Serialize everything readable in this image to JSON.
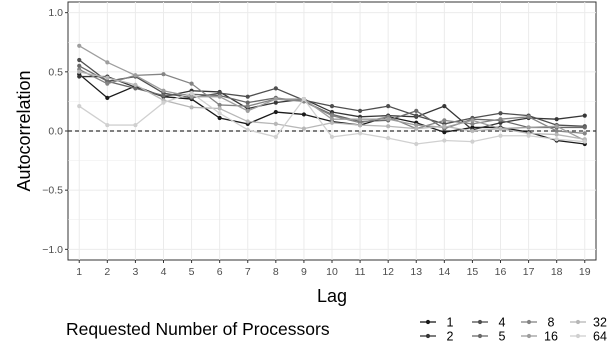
{
  "chart_data": {
    "type": "line",
    "xlabel": "Lag",
    "ylabel": "Autocorrelation",
    "x": [
      1,
      2,
      3,
      4,
      5,
      6,
      7,
      8,
      9,
      10,
      11,
      12,
      13,
      14,
      15,
      16,
      17,
      18,
      19
    ],
    "xlim": [
      0.6,
      19.4
    ],
    "ylim": [
      -1.09,
      1.09
    ],
    "y_ticks": [
      -1.0,
      -0.5,
      0.0,
      0.5,
      1.0
    ],
    "y_tick_labels": [
      "−1.0",
      "−0.5",
      "0.0",
      "0.5",
      "1.0"
    ],
    "x_tick_labels": [
      "1",
      "2",
      "3",
      "4",
      "5",
      "6",
      "7",
      "8",
      "9",
      "10",
      "11",
      "12",
      "13",
      "14",
      "15",
      "16",
      "17",
      "18",
      "19"
    ],
    "grid": true,
    "reference_line": {
      "y": 0.0,
      "style": "dashed"
    },
    "legend": {
      "title": "Requested Number of  Processors",
      "placement": "bottom"
    },
    "series": [
      {
        "name": "1",
        "color": "#1a1a1a",
        "values": [
          0.48,
          0.28,
          0.38,
          0.29,
          0.27,
          0.11,
          0.06,
          0.16,
          0.14,
          0.08,
          0.05,
          0.12,
          0.07,
          -0.01,
          0.03,
          0.03,
          -0.01,
          -0.08,
          -0.11
        ]
      },
      {
        "name": "2",
        "color": "#363636",
        "values": [
          0.46,
          0.46,
          0.37,
          0.29,
          0.34,
          0.33,
          0.19,
          0.24,
          0.27,
          0.16,
          0.12,
          0.13,
          0.12,
          0.21,
          0.01,
          0.07,
          0.11,
          0.1,
          0.13
        ]
      },
      {
        "name": "4",
        "color": "#4f4f4f",
        "values": [
          0.6,
          0.42,
          0.46,
          0.32,
          0.28,
          0.32,
          0.29,
          0.36,
          0.26,
          0.21,
          0.17,
          0.21,
          0.13,
          0.06,
          0.11,
          0.15,
          0.13,
          0.05,
          0.04
        ]
      },
      {
        "name": "5",
        "color": "#696969",
        "values": [
          0.55,
          0.42,
          0.36,
          0.3,
          0.31,
          0.3,
          0.24,
          0.28,
          0.25,
          0.14,
          0.08,
          0.09,
          0.17,
          0.02,
          0.1,
          0.09,
          0.03,
          0.03,
          0.03
        ]
      },
      {
        "name": "8",
        "color": "#848484",
        "values": [
          0.52,
          0.4,
          0.47,
          0.48,
          0.4,
          0.22,
          0.21,
          0.27,
          0.25,
          0.13,
          0.07,
          0.12,
          0.02,
          0.09,
          0.06,
          0.1,
          0.12,
          0.0,
          -0.02
        ]
      },
      {
        "name": "16",
        "color": "#9e9e9e",
        "values": [
          0.72,
          0.58,
          0.47,
          0.34,
          0.29,
          0.29,
          0.17,
          0.27,
          0.27,
          0.1,
          0.1,
          0.1,
          0.05,
          0.03,
          0.09,
          0.02,
          0.03,
          0.04,
          -0.08
        ]
      },
      {
        "name": "32",
        "color": "#b7b7b7",
        "values": [
          0.5,
          0.45,
          0.39,
          0.26,
          0.2,
          0.19,
          0.08,
          0.06,
          0.02,
          0.07,
          0.05,
          0.04,
          0.02,
          0.04,
          0.0,
          0.02,
          -0.02,
          -0.03,
          -0.07
        ]
      },
      {
        "name": "64",
        "color": "#d0d0d0",
        "values": [
          0.21,
          0.05,
          0.05,
          0.24,
          0.32,
          0.15,
          0.01,
          -0.05,
          0.27,
          -0.05,
          -0.02,
          -0.06,
          -0.11,
          -0.08,
          -0.09,
          -0.04,
          -0.04,
          -0.07,
          -0.09
        ]
      }
    ]
  }
}
